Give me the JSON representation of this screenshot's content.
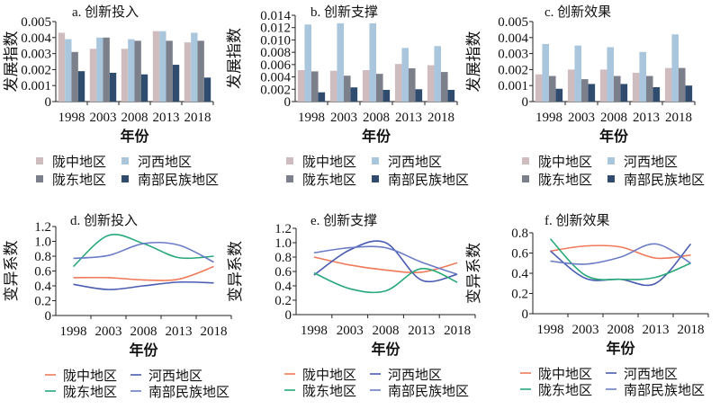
{
  "colors": {
    "bars": [
      "#cfbcbe",
      "#a9c6dc",
      "#7b808b",
      "#2f4b6e"
    ],
    "lines": [
      "#f0795a",
      "#4a5cb2",
      "#27a878",
      "#6a7cc6"
    ]
  },
  "chart_data": [
    {
      "type": "bar",
      "title": "a. 创新投入",
      "xlabel": "年份",
      "ylabel": "发展指数",
      "ylim": [
        0,
        0.005
      ],
      "yticks": [
        "0",
        "0.001",
        "0.002",
        "0.003",
        "0.004",
        "0.005"
      ],
      "legend": "bottom",
      "categories": [
        "1998",
        "2003",
        "2008",
        "2013",
        "2018"
      ],
      "series": [
        {
          "name": "陇中地区",
          "values": [
            0.0043,
            0.0033,
            0.0033,
            0.0044,
            0.0037
          ]
        },
        {
          "name": "河西地区",
          "values": [
            0.0039,
            0.004,
            0.0039,
            0.0044,
            0.0043
          ]
        },
        {
          "name": "陇东地区",
          "values": [
            0.0031,
            0.004,
            0.0038,
            0.0038,
            0.0038
          ]
        },
        {
          "name": "南部民族地区",
          "values": [
            0.0019,
            0.0018,
            0.0017,
            0.0023,
            0.0015
          ]
        }
      ]
    },
    {
      "type": "bar",
      "title": "b. 创新支撑",
      "xlabel": "年份",
      "ylabel": "发展指数",
      "ylim": [
        0,
        0.014
      ],
      "yticks": [
        "0",
        "0.002",
        "0.004",
        "0.006",
        "0.008",
        "0.010",
        "0.012",
        "0.014"
      ],
      "legend": "bottom",
      "categories": [
        "1998",
        "2003",
        "2008",
        "2013",
        "2018"
      ],
      "series": [
        {
          "name": "陇中地区",
          "values": [
            0.0051,
            0.005,
            0.0051,
            0.0061,
            0.0059
          ]
        },
        {
          "name": "河西地区",
          "values": [
            0.0125,
            0.0127,
            0.0127,
            0.0087,
            0.009
          ]
        },
        {
          "name": "陇东地区",
          "values": [
            0.0049,
            0.0042,
            0.0045,
            0.0054,
            0.0048
          ]
        },
        {
          "name": "南部民族地区",
          "values": [
            0.0015,
            0.0023,
            0.0019,
            0.002,
            0.0019
          ]
        }
      ]
    },
    {
      "type": "bar",
      "title": "c. 创新效果",
      "xlabel": "年份",
      "ylabel": "发展指数",
      "ylim": [
        0,
        0.005
      ],
      "yticks": [
        "0",
        "0.001",
        "0.002",
        "0.003",
        "0.004",
        "0.005"
      ],
      "legend": "bottom",
      "categories": [
        "1998",
        "2003",
        "2008",
        "2013",
        "2018"
      ],
      "series": [
        {
          "name": "陇中地区",
          "values": [
            0.0017,
            0.002,
            0.002,
            0.0018,
            0.0021
          ]
        },
        {
          "name": "河西地区",
          "values": [
            0.0036,
            0.0035,
            0.0034,
            0.0031,
            0.0042
          ]
        },
        {
          "name": "陇东地区",
          "values": [
            0.0016,
            0.0014,
            0.0016,
            0.0016,
            0.0021
          ]
        },
        {
          "name": "南部民族地区",
          "values": [
            0.0008,
            0.0011,
            0.0011,
            0.0009,
            0.001
          ]
        }
      ]
    },
    {
      "type": "line",
      "title": "d. 创新投入",
      "xlabel": "年份",
      "ylabel": "变异系数",
      "ylim": [
        0,
        1.2
      ],
      "yticks": [
        "0",
        "0.2",
        "0.4",
        "0.6",
        "0.8",
        "1.0",
        "1.2"
      ],
      "legend": "bottom",
      "categories": [
        "1998",
        "2003",
        "2008",
        "2013",
        "2018"
      ],
      "series": [
        {
          "name": "陇中地区",
          "values": [
            0.51,
            0.51,
            0.48,
            0.49,
            0.66
          ]
        },
        {
          "name": "河西地区",
          "values": [
            0.42,
            0.35,
            0.4,
            0.45,
            0.44
          ]
        },
        {
          "name": "陇东地区",
          "values": [
            0.66,
            1.08,
            0.97,
            0.78,
            0.8
          ]
        },
        {
          "name": "南部民族地区",
          "values": [
            0.77,
            0.81,
            0.97,
            0.95,
            0.72
          ]
        }
      ]
    },
    {
      "type": "line",
      "title": "e. 创新支撑",
      "xlabel": "年份",
      "ylabel": "变异系数",
      "ylim": [
        0,
        1.2
      ],
      "yticks": [
        "0",
        "0.2",
        "0.4",
        "0.6",
        "0.8",
        "1.0",
        "1.2"
      ],
      "legend": "bottom",
      "categories": [
        "1998",
        "2003",
        "2008",
        "2013",
        "2018"
      ],
      "series": [
        {
          "name": "陇中地区",
          "values": [
            0.8,
            0.69,
            0.62,
            0.59,
            0.72
          ]
        },
        {
          "name": "河西地区",
          "values": [
            0.55,
            0.9,
            1.0,
            0.48,
            0.56
          ]
        },
        {
          "name": "陇东地区",
          "values": [
            0.58,
            0.36,
            0.33,
            0.64,
            0.45
          ]
        },
        {
          "name": "南部民族地区",
          "values": [
            0.86,
            0.93,
            0.93,
            0.73,
            0.56
          ]
        }
      ]
    },
    {
      "type": "line",
      "title": "f. 创新效果",
      "xlabel": "年份",
      "ylabel": "变异系数",
      "ylim": [
        0,
        0.8
      ],
      "yticks": [
        "0",
        "0.2",
        "0.4",
        "0.6",
        "0.8"
      ],
      "legend": "bottom",
      "categories": [
        "1998",
        "2003",
        "2008",
        "2013",
        "2018"
      ],
      "series": [
        {
          "name": "陇中地区",
          "values": [
            0.62,
            0.67,
            0.66,
            0.55,
            0.58
          ]
        },
        {
          "name": "河西地区",
          "values": [
            0.62,
            0.35,
            0.34,
            0.3,
            0.69
          ]
        },
        {
          "name": "陇东地区",
          "values": [
            0.74,
            0.38,
            0.34,
            0.36,
            0.5
          ]
        },
        {
          "name": "南部民族地区",
          "values": [
            0.52,
            0.49,
            0.56,
            0.69,
            0.5
          ]
        }
      ]
    }
  ]
}
